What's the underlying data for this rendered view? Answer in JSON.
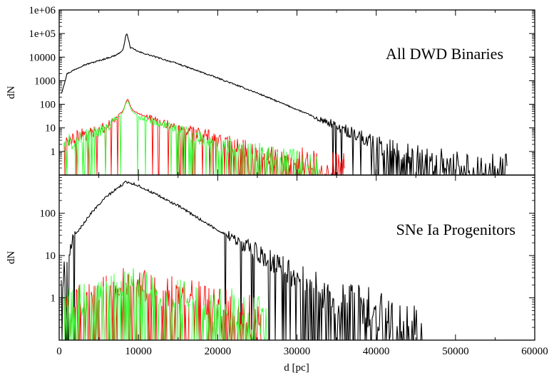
{
  "chart_data": [
    {
      "type": "line",
      "title": "",
      "annotation": "All DWD Binaries",
      "xlabel": "",
      "ylabel": "dN",
      "xlim": [
        0,
        60000
      ],
      "ylim": [
        0.1,
        1000000
      ],
      "yscale": "log",
      "xticks": [
        0,
        10000,
        20000,
        30000,
        40000,
        50000,
        60000
      ],
      "yticks": [
        1,
        10,
        100,
        1000,
        10000,
        100000,
        1000000
      ],
      "ytick_labels": [
        "1",
        "10",
        "100",
        "1000",
        "10000",
        "1e+05",
        "1e+06"
      ],
      "grid": false,
      "legend": "none",
      "series": [
        {
          "color": "#000000",
          "x": [
            300,
            1000,
            3000,
            5000,
            7000,
            8000,
            8500,
            9000,
            9500,
            10000,
            15000,
            20000,
            25000,
            30000,
            35000,
            40000,
            45000,
            50000,
            55000
          ],
          "y": [
            300,
            2000,
            4500,
            7000,
            11500,
            18000,
            110000,
            25000,
            21000,
            17000,
            5200,
            1300,
            300,
            60,
            12,
            2,
            0.6,
            0.3,
            0.2
          ]
        },
        {
          "color": "#ff0000",
          "x": [
            500,
            2000,
            4000,
            6000,
            8000,
            8600,
            9200,
            10000,
            15000,
            20000,
            25000,
            30000,
            35000
          ],
          "y": [
            3,
            4,
            6,
            12,
            50,
            180,
            60,
            40,
            10,
            3,
            1,
            0.5,
            0.3
          ]
        },
        {
          "color": "#33ff33",
          "x": [
            500,
            2000,
            4000,
            6000,
            8000,
            8600,
            9200,
            10000,
            15000,
            20000,
            25000,
            30000,
            33000
          ],
          "y": [
            2,
            3,
            5,
            10,
            45,
            150,
            50,
            30,
            8,
            2,
            0.8,
            0.4,
            0.2
          ]
        }
      ]
    },
    {
      "type": "line",
      "title": "",
      "annotation": "SNe Ia Progenitors",
      "xlabel": "d [pc]",
      "ylabel": "dN",
      "xlim": [
        0,
        60000
      ],
      "ylim": [
        0.1,
        800
      ],
      "yscale": "log",
      "xticks": [
        0,
        10000,
        20000,
        30000,
        40000,
        50000,
        60000
      ],
      "xtick_labels": [
        "0",
        "10000",
        "20000",
        "30000",
        "40000",
        "50000",
        "60000"
      ],
      "yticks": [
        1,
        10,
        100
      ],
      "ytick_labels": [
        "1",
        "10",
        "100"
      ],
      "grid": false,
      "legend": "none",
      "series": [
        {
          "color": "#000000",
          "x": [
            300,
            1000,
            2000,
            4000,
            6000,
            8000,
            8500,
            9000,
            10000,
            15000,
            20000,
            25000,
            30000,
            35000,
            40000,
            46000
          ],
          "y": [
            2,
            10,
            30,
            100,
            250,
            480,
            560,
            520,
            450,
            150,
            40,
            12,
            3,
            1,
            0.5,
            0.2
          ]
        },
        {
          "color": "#ff0000",
          "x": [
            1000,
            5000,
            8500,
            12000,
            20000,
            25000
          ],
          "y": [
            0.6,
            1.5,
            2.5,
            1.5,
            0.8,
            0.3
          ]
        },
        {
          "color": "#33ff33",
          "x": [
            1000,
            5000,
            8500,
            12000,
            20000,
            26000
          ],
          "y": [
            0.6,
            1.4,
            2.5,
            1.4,
            0.7,
            0.3
          ]
        }
      ]
    }
  ]
}
